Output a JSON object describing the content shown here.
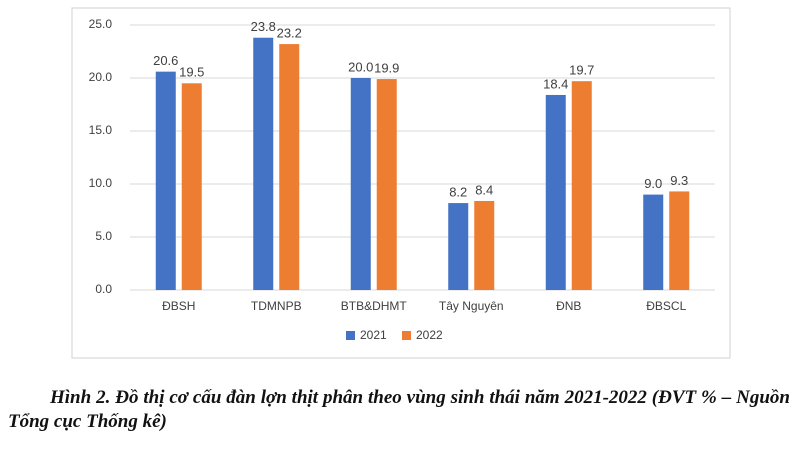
{
  "chart_data": {
    "type": "bar",
    "categories": [
      "ĐBSH",
      "TDMNPB",
      "BTB&DHMT",
      "Tây Nguyên",
      "ĐNB",
      "ĐBSCL"
    ],
    "series": [
      {
        "name": "2021",
        "color": "#4472c4",
        "values": [
          20.6,
          23.8,
          20.0,
          8.2,
          18.4,
          9.0
        ],
        "value_labels": [
          "20.6",
          "23.8",
          "20.0",
          "8.2",
          "18.4",
          "9.0"
        ]
      },
      {
        "name": "2022",
        "color": "#ed7d31",
        "values": [
          19.5,
          23.2,
          19.9,
          8.4,
          19.7,
          9.3
        ],
        "value_labels": [
          "19.5",
          "23.2",
          "19.9",
          "8.4",
          "19.7",
          "9.3"
        ]
      }
    ],
    "ylim": [
      0,
      25
    ],
    "yticks": [
      {
        "value": 0,
        "label": "0.0"
      },
      {
        "value": 5,
        "label": "5.0"
      },
      {
        "value": 10,
        "label": "10.0"
      },
      {
        "value": 15,
        "label": "15.0"
      },
      {
        "value": 20,
        "label": "20.0"
      },
      {
        "value": 25,
        "label": "25.0"
      }
    ],
    "grid": true,
    "legend": "bottom",
    "caption": "Hình 2. Đồ thị cơ cấu đàn lợn thịt phân theo vùng sinh thái năm 2021-2022 (ĐVT % – Nguồn Tổng cục Thống kê)"
  }
}
